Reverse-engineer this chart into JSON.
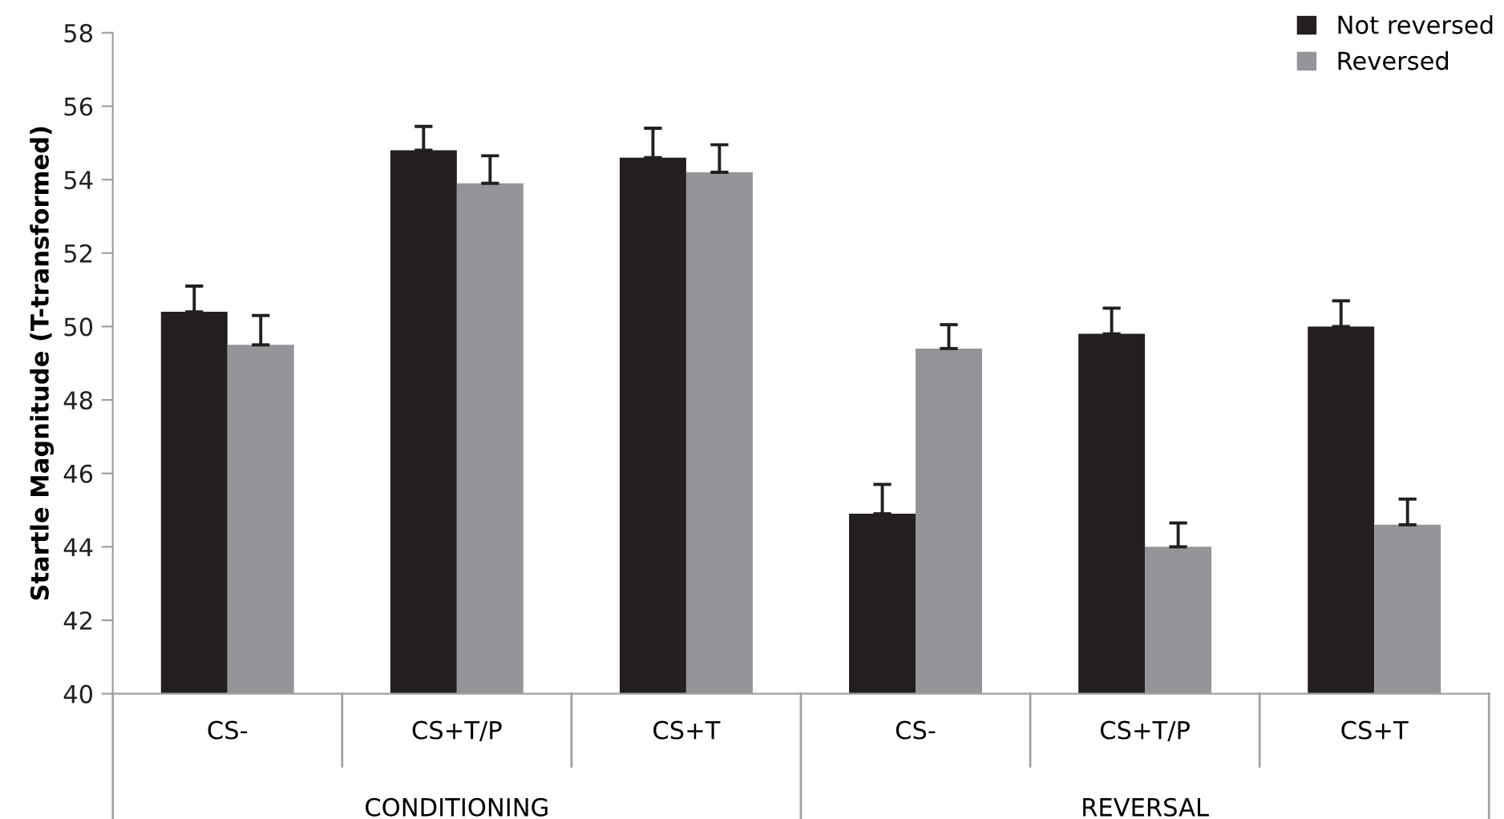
{
  "chart_data": {
    "type": "bar",
    "ylabel": "Startle Magnitude (T-transformed)",
    "categories": [
      "CS-",
      "CS+T/P",
      "CS+T",
      "CS-",
      "CS+T/P",
      "CS+T"
    ],
    "series": [
      {
        "name": "Not reversed",
        "color": "#231f20",
        "values": [
          50.4,
          54.8,
          54.6,
          44.9,
          49.8,
          50.0
        ],
        "errors": [
          0.7,
          0.65,
          0.8,
          0.8,
          0.7,
          0.7
        ]
      },
      {
        "name": "Reversed",
        "color": "#939598",
        "values": [
          49.5,
          53.9,
          54.2,
          49.4,
          44.0,
          44.6
        ],
        "errors": [
          0.8,
          0.75,
          0.75,
          0.65,
          0.65,
          0.7
        ]
      }
    ],
    "annotations": [
      "CONDITIONING",
      "REVERSAL"
    ],
    "ylim": [
      40,
      58
    ],
    "yticks": [
      40,
      42,
      44,
      46,
      48,
      50,
      52,
      54,
      56,
      58
    ],
    "grid": false,
    "legend": "top right"
  }
}
